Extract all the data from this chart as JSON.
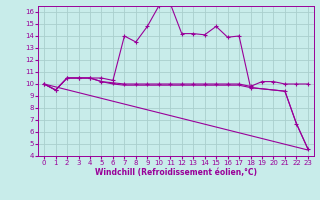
{
  "background_color": "#c8ecea",
  "grid_color": "#aacfcd",
  "line_color": "#990099",
  "xlabel": "Windchill (Refroidissement éolien,°C)",
  "xlim": [
    -0.5,
    23.5
  ],
  "ylim": [
    4,
    16.5
  ],
  "yticks": [
    4,
    5,
    6,
    7,
    8,
    9,
    10,
    11,
    12,
    13,
    14,
    15,
    16
  ],
  "xticks": [
    0,
    1,
    2,
    3,
    4,
    5,
    6,
    7,
    8,
    9,
    10,
    11,
    12,
    13,
    14,
    15,
    16,
    17,
    18,
    19,
    20,
    21,
    22,
    23
  ],
  "lines": [
    {
      "x": [
        0,
        1,
        2,
        3,
        4,
        5,
        6,
        7,
        8,
        9,
        10,
        11,
        12,
        13,
        14,
        15,
        16,
        17,
        18,
        21,
        22,
        23
      ],
      "y": [
        10,
        9.5,
        10.5,
        10.5,
        10.5,
        10.5,
        10.3,
        14.0,
        13.5,
        14.8,
        16.5,
        16.7,
        14.2,
        14.2,
        14.1,
        14.8,
        13.9,
        14.0,
        9.7,
        9.4,
        6.7,
        4.6
      ],
      "marker": true
    },
    {
      "x": [
        0,
        1,
        2,
        3,
        4,
        5,
        6,
        7,
        8,
        9,
        10,
        11,
        12,
        13,
        14,
        15,
        16,
        17,
        18,
        19,
        20,
        21,
        22,
        23
      ],
      "y": [
        10,
        9.5,
        10.5,
        10.5,
        10.5,
        10.2,
        10.1,
        10.0,
        10.0,
        10.0,
        10.0,
        10.0,
        10.0,
        10.0,
        10.0,
        10.0,
        10.0,
        10.0,
        9.8,
        10.2,
        10.2,
        10.0,
        10.0,
        10.0
      ],
      "marker": true
    },
    {
      "x": [
        0,
        1,
        2,
        3,
        4,
        5,
        6,
        7,
        17,
        18,
        21,
        22,
        23
      ],
      "y": [
        10,
        9.5,
        10.5,
        10.5,
        10.5,
        10.2,
        10.0,
        9.9,
        9.9,
        9.7,
        9.4,
        6.7,
        4.6
      ],
      "marker": false
    },
    {
      "x": [
        0,
        23
      ],
      "y": [
        10,
        4.5
      ],
      "marker": false
    }
  ]
}
